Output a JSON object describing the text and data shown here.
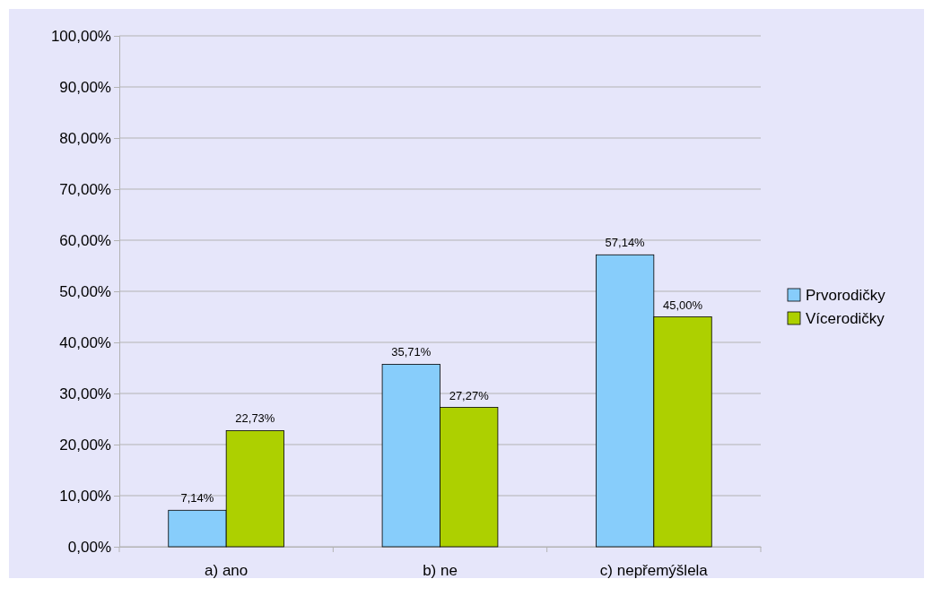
{
  "chart_data": {
    "type": "bar",
    "categories": [
      "a) ano",
      "b) ne",
      "c) nepřemýšlela"
    ],
    "series": [
      {
        "name": "Prvorodičky",
        "color": "#87cdfb",
        "values": [
          7.14,
          35.71,
          57.14
        ],
        "value_labels": [
          "7,14%",
          "35,71%",
          "57,14%"
        ]
      },
      {
        "name": "Vícerodičky",
        "color": "#add000",
        "values": [
          22.73,
          27.27,
          45.0
        ],
        "value_labels": [
          "22,73%",
          "27,27%",
          "45,00%"
        ]
      }
    ],
    "ylim": [
      0,
      100
    ],
    "yticks": [
      {
        "value": 0,
        "label": "0,00%"
      },
      {
        "value": 10,
        "label": "10,00%"
      },
      {
        "value": 20,
        "label": "20,00%"
      },
      {
        "value": 30,
        "label": "30,00%"
      },
      {
        "value": 40,
        "label": "40,00%"
      },
      {
        "value": 50,
        "label": "50,00%"
      },
      {
        "value": 60,
        "label": "60,00%"
      },
      {
        "value": 70,
        "label": "70,00%"
      },
      {
        "value": 80,
        "label": "80,00%"
      },
      {
        "value": 90,
        "label": "90,00%"
      },
      {
        "value": 100,
        "label": "100,00%"
      }
    ],
    "grid": "y",
    "legend": "right"
  }
}
